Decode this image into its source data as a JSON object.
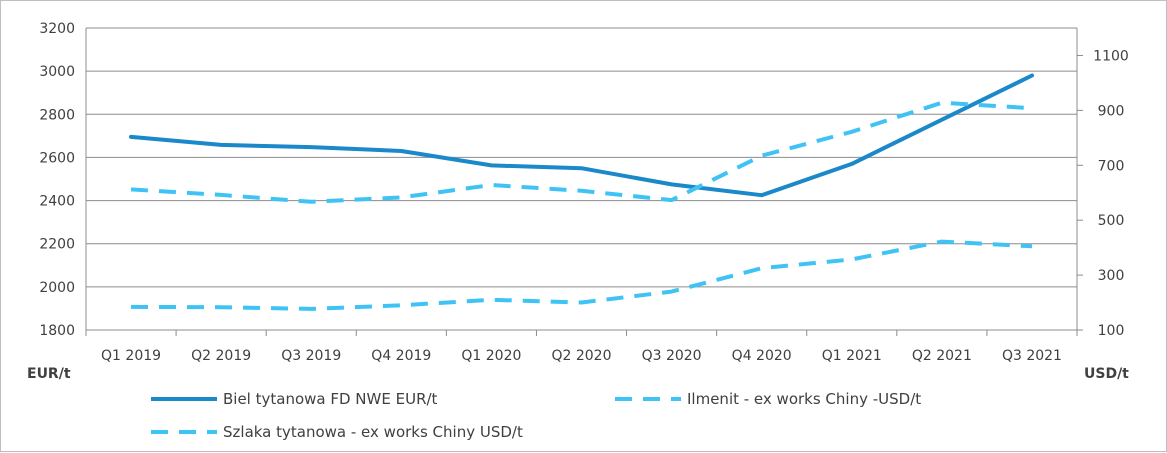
{
  "chart_data": {
    "type": "line",
    "categories": [
      "Q1 2019",
      "Q2 2019",
      "Q3 2019",
      "Q4 2019",
      "Q1 2020",
      "Q2 2020",
      "Q3 2020",
      "Q4 2020",
      "Q1 2021",
      "Q2 2021",
      "Q3 2021"
    ],
    "y_left": {
      "label": "EUR/t",
      "range": [
        1800,
        3200
      ],
      "ticks": [
        "1800",
        "2000",
        "2200",
        "2400",
        "2600",
        "2800",
        "3000",
        "3200"
      ]
    },
    "y_right": {
      "label": "USD/t",
      "range": [
        100,
        1200
      ],
      "ticks": [
        "100",
        "300",
        "500",
        "700",
        "900",
        "1100"
      ]
    },
    "grid": true,
    "legend_position": "bottom",
    "series": [
      {
        "name": "Biel tytanowa FD NWE EUR/t",
        "axis": "left",
        "style": "solid",
        "color": "#1a88c9",
        "values": [
          2695,
          2658,
          2648,
          2630,
          2563,
          2550,
          2475,
          2425,
          2570,
          2775,
          2980
        ]
      },
      {
        "name": "Ilmenit - ex works Chiny -USD/t",
        "axis": "right",
        "style": "dashed",
        "color": "#3fc3f5",
        "values": [
          184,
          183,
          177,
          190,
          210,
          200,
          240,
          325,
          357,
          422,
          405
        ]
      },
      {
        "name": "Szlaka tytanowa - ex works Chiny USD/t",
        "axis": "right",
        "style": "dashed",
        "color": "#3fc3f5",
        "values": [
          612,
          592,
          567,
          583,
          628,
          607,
          573,
          735,
          822,
          928,
          908
        ]
      }
    ]
  }
}
